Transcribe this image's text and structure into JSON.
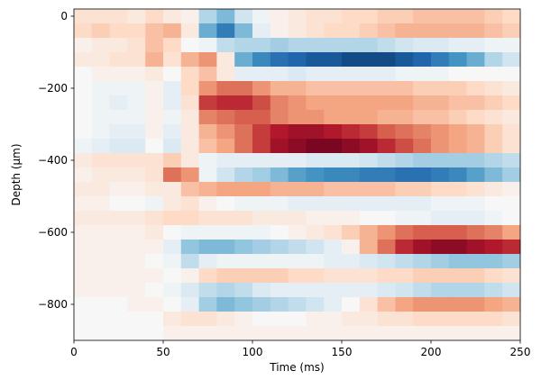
{
  "chart_data": {
    "type": "heatmap",
    "title": "",
    "xlabel": "Time (ms)",
    "ylabel": "Depth (μm)",
    "xlim": [
      0,
      250
    ],
    "ylim": [
      -900,
      20
    ],
    "xticks": [
      0,
      50,
      100,
      150,
      200,
      250
    ],
    "xtick_labels": [
      "0",
      "50",
      "100",
      "150",
      "200",
      "250"
    ],
    "yticks": [
      0,
      -200,
      -400,
      -600,
      -800
    ],
    "ytick_labels": [
      "0",
      "−200",
      "−400",
      "−600",
      "−800"
    ],
    "colormap": "RdBu_r",
    "colormap_colors": [
      "#053061",
      "#2166ac",
      "#4393c3",
      "#92c5de",
      "#d1e5f0",
      "#f7f7f7",
      "#fddbc7",
      "#f4a582",
      "#d6604d",
      "#b2182b",
      "#67001f"
    ],
    "value_range": [
      -1,
      1
    ],
    "grid": false,
    "time_bins": [
      0,
      10,
      20,
      30,
      40,
      50,
      60,
      70,
      80,
      90,
      100,
      110,
      120,
      130,
      140,
      150,
      160,
      170,
      180,
      190,
      200,
      210,
      220,
      230,
      240
    ],
    "bin_width_ms": 10,
    "depth_rows": [
      {
        "depth": 0,
        "values": [
          0.15,
          0.15,
          0.15,
          0.1,
          0.2,
          0.1,
          0.05,
          -0.3,
          -0.45,
          -0.2,
          -0.05,
          0.05,
          0.1,
          0.15,
          0.15,
          0.2,
          0.2,
          0.25,
          0.25,
          0.3,
          0.3,
          0.3,
          0.3,
          0.25,
          0.2
        ]
      },
      {
        "depth": -40,
        "values": [
          0.2,
          0.25,
          0.2,
          0.2,
          0.3,
          0.35,
          0.1,
          -0.5,
          -0.7,
          -0.45,
          -0.1,
          0.05,
          0.1,
          0.15,
          0.2,
          0.2,
          0.25,
          0.3,
          0.35,
          0.35,
          0.35,
          0.35,
          0.35,
          0.3,
          0.25
        ]
      },
      {
        "depth": -80,
        "values": [
          0.05,
          0.1,
          0.1,
          0.15,
          0.3,
          0.2,
          0.0,
          -0.05,
          -0.25,
          -0.3,
          -0.3,
          -0.35,
          -0.3,
          -0.3,
          -0.3,
          -0.3,
          -0.3,
          -0.25,
          -0.2,
          -0.15,
          -0.15,
          -0.1,
          -0.1,
          -0.05,
          -0.05
        ]
      },
      {
        "depth": -120,
        "values": [
          0.1,
          0.1,
          0.15,
          0.15,
          0.35,
          0.15,
          0.35,
          0.45,
          0.1,
          -0.5,
          -0.65,
          -0.75,
          -0.8,
          -0.85,
          -0.85,
          -0.9,
          -0.9,
          -0.9,
          -0.85,
          -0.8,
          -0.7,
          -0.6,
          -0.5,
          -0.3,
          -0.2
        ]
      },
      {
        "depth": -160,
        "values": [
          0.0,
          0.05,
          0.05,
          0.05,
          0.1,
          0.0,
          0.2,
          0.3,
          0.1,
          -0.1,
          -0.1,
          -0.1,
          -0.15,
          -0.1,
          -0.1,
          -0.1,
          -0.1,
          -0.1,
          -0.05,
          -0.05,
          -0.05,
          0.0,
          0.0,
          0.0,
          0.0
        ]
      },
      {
        "depth": -200,
        "values": [
          0.0,
          -0.05,
          -0.05,
          -0.05,
          0.05,
          -0.1,
          0.2,
          0.45,
          0.55,
          0.55,
          0.45,
          0.35,
          0.35,
          0.3,
          0.3,
          0.3,
          0.3,
          0.3,
          0.3,
          0.25,
          0.25,
          0.25,
          0.2,
          0.15,
          0.1
        ]
      },
      {
        "depth": -240,
        "values": [
          0.0,
          -0.05,
          -0.1,
          -0.05,
          0.05,
          -0.1,
          0.15,
          0.7,
          0.75,
          0.75,
          0.65,
          0.5,
          0.45,
          0.4,
          0.4,
          0.4,
          0.4,
          0.4,
          0.4,
          0.35,
          0.35,
          0.3,
          0.3,
          0.25,
          0.2
        ]
      },
      {
        "depth": -280,
        "values": [
          0.0,
          -0.05,
          -0.05,
          -0.05,
          0.05,
          -0.05,
          0.1,
          0.5,
          0.55,
          0.6,
          0.6,
          0.5,
          0.45,
          0.45,
          0.4,
          0.4,
          0.4,
          0.35,
          0.35,
          0.3,
          0.3,
          0.25,
          0.2,
          0.15,
          0.1
        ]
      },
      {
        "depth": -320,
        "values": [
          0.0,
          -0.05,
          -0.1,
          -0.1,
          0.05,
          -0.1,
          0.1,
          0.35,
          0.45,
          0.55,
          0.7,
          0.8,
          0.85,
          0.85,
          0.8,
          0.75,
          0.7,
          0.6,
          0.55,
          0.5,
          0.45,
          0.4,
          0.35,
          0.25,
          0.15
        ]
      },
      {
        "depth": -360,
        "values": [
          -0.05,
          -0.1,
          -0.15,
          -0.15,
          0.0,
          -0.15,
          0.1,
          0.3,
          0.4,
          0.55,
          0.7,
          0.85,
          0.9,
          0.95,
          0.95,
          0.9,
          0.85,
          0.75,
          0.65,
          0.55,
          0.45,
          0.4,
          0.35,
          0.25,
          0.15
        ]
      },
      {
        "depth": -400,
        "values": [
          0.1,
          0.15,
          0.15,
          0.15,
          0.15,
          0.25,
          0.1,
          -0.05,
          -0.1,
          -0.1,
          -0.1,
          -0.1,
          -0.1,
          -0.15,
          -0.15,
          -0.15,
          -0.2,
          -0.25,
          -0.3,
          -0.35,
          -0.35,
          -0.35,
          -0.35,
          -0.3,
          -0.25
        ]
      },
      {
        "depth": -440,
        "values": [
          0.05,
          0.1,
          0.1,
          0.1,
          0.15,
          0.55,
          0.45,
          -0.05,
          -0.2,
          -0.3,
          -0.35,
          -0.45,
          -0.55,
          -0.6,
          -0.65,
          -0.65,
          -0.7,
          -0.7,
          -0.75,
          -0.75,
          -0.7,
          -0.65,
          -0.55,
          -0.45,
          -0.35
        ]
      },
      {
        "depth": -480,
        "values": [
          0.1,
          0.1,
          0.05,
          0.05,
          0.1,
          0.1,
          0.3,
          0.35,
          0.4,
          0.4,
          0.4,
          0.35,
          0.35,
          0.35,
          0.3,
          0.3,
          0.3,
          0.3,
          0.25,
          0.25,
          0.2,
          0.2,
          0.15,
          0.1,
          0.05
        ]
      },
      {
        "depth": -520,
        "values": [
          0.05,
          0.05,
          0.0,
          0.0,
          -0.05,
          0.1,
          0.15,
          0.05,
          0.0,
          -0.05,
          -0.05,
          -0.05,
          -0.1,
          -0.1,
          -0.1,
          -0.1,
          -0.1,
          -0.1,
          -0.1,
          -0.1,
          -0.05,
          -0.05,
          -0.05,
          0.0,
          0.0
        ]
      },
      {
        "depth": -560,
        "values": [
          0.1,
          0.1,
          0.1,
          0.1,
          0.15,
          0.2,
          0.2,
          0.15,
          0.15,
          0.15,
          0.1,
          0.1,
          0.1,
          0.05,
          0.05,
          0.05,
          0.0,
          0.0,
          -0.05,
          -0.05,
          -0.1,
          -0.1,
          -0.1,
          -0.05,
          0.0
        ]
      },
      {
        "depth": -600,
        "values": [
          0.05,
          0.05,
          0.05,
          0.05,
          0.1,
          0.0,
          -0.05,
          -0.05,
          -0.05,
          -0.05,
          -0.05,
          0.0,
          0.05,
          0.1,
          0.15,
          0.25,
          0.35,
          0.45,
          0.55,
          0.6,
          0.6,
          0.6,
          0.55,
          0.5,
          0.4
        ]
      },
      {
        "depth": -640,
        "values": [
          0.05,
          0.05,
          0.05,
          0.05,
          0.05,
          -0.1,
          -0.4,
          -0.45,
          -0.45,
          -0.4,
          -0.35,
          -0.3,
          -0.25,
          -0.2,
          -0.1,
          0.05,
          0.35,
          0.55,
          0.75,
          0.85,
          0.9,
          0.9,
          0.85,
          0.8,
          0.75
        ]
      },
      {
        "depth": -680,
        "values": [
          0.05,
          0.05,
          0.05,
          0.05,
          0.0,
          -0.05,
          -0.25,
          -0.1,
          -0.05,
          -0.05,
          -0.05,
          -0.05,
          -0.05,
          -0.05,
          -0.1,
          -0.1,
          -0.15,
          -0.2,
          -0.25,
          -0.3,
          -0.35,
          -0.4,
          -0.4,
          -0.4,
          -0.35
        ]
      },
      {
        "depth": -720,
        "values": [
          0.05,
          0.05,
          0.05,
          0.05,
          0.05,
          0.0,
          0.05,
          0.2,
          0.25,
          0.25,
          0.25,
          0.25,
          0.2,
          0.2,
          0.15,
          0.15,
          0.15,
          0.2,
          0.2,
          0.25,
          0.25,
          0.25,
          0.25,
          0.2,
          0.15
        ]
      },
      {
        "depth": -760,
        "values": [
          0.05,
          0.05,
          0.05,
          0.05,
          0.0,
          -0.05,
          -0.15,
          -0.25,
          -0.3,
          -0.25,
          -0.15,
          -0.1,
          -0.1,
          -0.1,
          -0.1,
          -0.1,
          -0.1,
          -0.15,
          -0.2,
          -0.25,
          -0.3,
          -0.3,
          -0.3,
          -0.25,
          -0.2
        ]
      },
      {
        "depth": -800,
        "values": [
          0.0,
          0.0,
          0.0,
          0.05,
          0.05,
          0.0,
          -0.1,
          -0.35,
          -0.45,
          -0.4,
          -0.35,
          -0.3,
          -0.25,
          -0.2,
          -0.1,
          0.0,
          0.15,
          0.3,
          0.4,
          0.45,
          0.45,
          0.45,
          0.45,
          0.4,
          0.35
        ]
      },
      {
        "depth": -840,
        "values": [
          0.0,
          0.0,
          0.0,
          0.0,
          0.0,
          0.1,
          0.15,
          0.15,
          0.1,
          0.05,
          0.0,
          0.0,
          0.0,
          0.05,
          0.05,
          0.1,
          0.1,
          0.15,
          0.15,
          0.2,
          0.2,
          0.2,
          0.2,
          0.2,
          0.15
        ]
      },
      {
        "depth": -880,
        "values": [
          0.0,
          0.0,
          0.0,
          0.0,
          0.0,
          0.05,
          0.05,
          0.05,
          0.05,
          0.05,
          0.05,
          0.05,
          0.05,
          0.05,
          0.05,
          0.05,
          0.05,
          0.05,
          0.05,
          0.05,
          0.05,
          0.05,
          0.05,
          0.05,
          0.05
        ]
      }
    ]
  }
}
